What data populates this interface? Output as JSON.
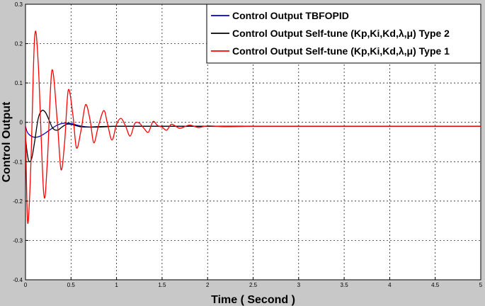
{
  "chart_data": {
    "type": "line",
    "xlabel": "Time ( Second )",
    "ylabel": "Control  Output",
    "xlim": [
      0,
      5
    ],
    "ylim": [
      -0.4,
      0.3
    ],
    "x_ticks": [
      "0",
      "0.5",
      "1",
      "1.5",
      "2",
      "2.5",
      "3",
      "3.5",
      "4",
      "4.5",
      "5"
    ],
    "y_ticks": [
      "0.3",
      "0.2",
      "0.1",
      "0",
      "-0.1",
      "-0.2",
      "-0.3",
      "-0.4"
    ],
    "grid": true,
    "legend_position": "top-right",
    "series": [
      {
        "name": "Control Output TBFOPID",
        "color": "#0000cc",
        "x": [
          0,
          0.02,
          0.05,
          0.1,
          0.15,
          0.2,
          0.25,
          0.3,
          0.35,
          0.4,
          0.45,
          0.5,
          0.55,
          0.6,
          0.7,
          0.8,
          0.9,
          1.0,
          1.2,
          1.5,
          2.0,
          3.0,
          5.0
        ],
        "y": [
          -0.01,
          -0.025,
          -0.033,
          -0.038,
          -0.036,
          -0.03,
          -0.022,
          -0.014,
          -0.007,
          -0.003,
          -0.002,
          -0.003,
          -0.006,
          -0.009,
          -0.012,
          -0.012,
          -0.011,
          -0.01,
          -0.01,
          -0.01,
          -0.01,
          -0.01,
          -0.01
        ]
      },
      {
        "name": "Control Output Self-tune (Kp,Ki,Kd,λ,μ) Type 2",
        "color": "#000000",
        "x": [
          0,
          0.02,
          0.04,
          0.07,
          0.1,
          0.14,
          0.18,
          0.22,
          0.26,
          0.3,
          0.35,
          0.4,
          0.45,
          0.5,
          0.6,
          0.7,
          0.8,
          1.0,
          1.5,
          2.0,
          5.0
        ],
        "y": [
          -0.04,
          -0.08,
          -0.1,
          -0.09,
          -0.05,
          0.01,
          0.03,
          0.025,
          0.005,
          -0.015,
          -0.02,
          -0.012,
          -0.005,
          -0.005,
          -0.011,
          -0.012,
          -0.011,
          -0.01,
          -0.01,
          -0.01,
          -0.01
        ]
      },
      {
        "name": "Control Output Self-tune (Kp,Ki,Kd,λ,μ) Type 1",
        "color": "#ff0000",
        "x": [
          0,
          0.015,
          0.03,
          0.06,
          0.1,
          0.14,
          0.2,
          0.24,
          0.29,
          0.35,
          0.39,
          0.43,
          0.47,
          0.52,
          0.56,
          0.61,
          0.66,
          0.71,
          0.75,
          0.8,
          0.86,
          0.9,
          0.95,
          1.0,
          1.05,
          1.1,
          1.15,
          1.2,
          1.25,
          1.3,
          1.35,
          1.4,
          1.45,
          1.5,
          1.55,
          1.6,
          1.65,
          1.7,
          1.8,
          1.9,
          2.0,
          2.2,
          2.5,
          3.0,
          5.0
        ],
        "y": [
          -0.01,
          -0.2,
          -0.252,
          -0.1,
          0.215,
          0.15,
          -0.18,
          -0.1,
          0.132,
          0.0,
          -0.12,
          -0.05,
          0.082,
          0.02,
          -0.065,
          -0.02,
          0.045,
          0.005,
          -0.052,
          -0.01,
          0.03,
          -0.003,
          -0.045,
          -0.005,
          0.01,
          -0.01,
          -0.035,
          -0.003,
          -0.002,
          -0.015,
          -0.025,
          0.002,
          -0.008,
          -0.012,
          -0.02,
          -0.005,
          -0.01,
          -0.015,
          -0.007,
          -0.013,
          -0.009,
          -0.011,
          -0.01,
          -0.01,
          -0.01
        ]
      }
    ]
  }
}
